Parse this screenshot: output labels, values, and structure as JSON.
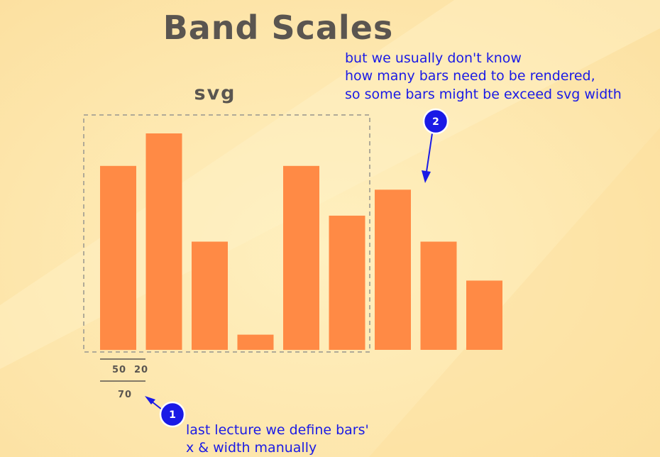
{
  "title": "Band Scales",
  "svg_label": "svg",
  "colors": {
    "background": "#fde9b0",
    "bar": "#ff8a45",
    "annotation": "#1a1ae6",
    "text": "#5a5550",
    "svg_frame": "#b0aa98"
  },
  "bars": [
    {
      "value": 0.85
    },
    {
      "value": 1.0
    },
    {
      "value": 0.5
    },
    {
      "value": 0.07
    },
    {
      "value": 0.85
    },
    {
      "value": 0.62
    },
    {
      "value": 0.74
    },
    {
      "value": 0.5
    },
    {
      "value": 0.32
    }
  ],
  "measurements": {
    "bar_width": "50",
    "gap": "20",
    "step": "70"
  },
  "annotations": [
    {
      "number": "1",
      "lines": [
        "last lecture we define bars'",
        "x & width manually"
      ]
    },
    {
      "number": "2",
      "lines": [
        "but we usually don't know",
        "how many bars need to be rendered,",
        "so some bars might be exceed svg width"
      ]
    }
  ]
}
